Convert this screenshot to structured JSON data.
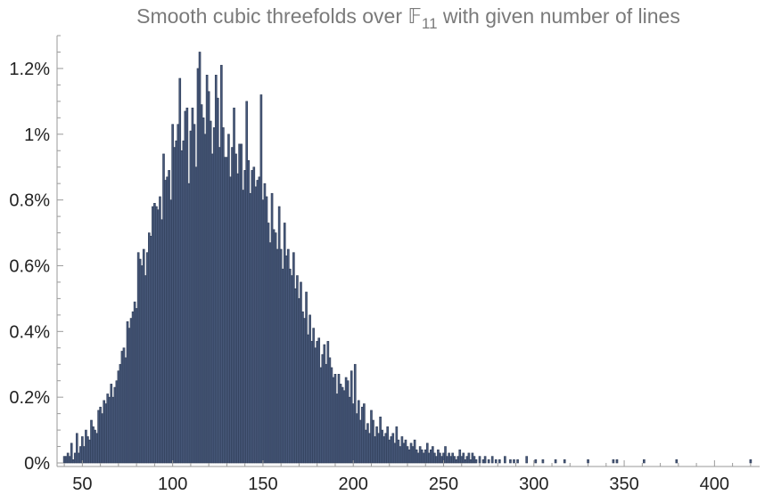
{
  "chart_data": {
    "type": "bar",
    "title_main": "Smooth cubic threefolds over 𝔽",
    "title_subscript": "11",
    "title_rest": " with given number of lines",
    "x_ticks": [
      50,
      100,
      150,
      200,
      250,
      300,
      350,
      400
    ],
    "y_ticks": [
      0,
      0.2,
      0.4,
      0.6,
      0.8,
      1.0,
      1.2
    ],
    "y_tick_labels": [
      "0%",
      "0.2%",
      "0.4%",
      "0.6%",
      "0.8%",
      "1%",
      "1.2%"
    ],
    "xlim": [
      36,
      425
    ],
    "ylim": [
      0,
      1.3
    ],
    "colors": {
      "bar": "#48597a",
      "bar_edge": "#2e3c57",
      "axis": "#9a9a9a",
      "title": "#7a7a7a"
    },
    "bars": [
      [
        40,
        0.02
      ],
      [
        41,
        0.02
      ],
      [
        42,
        0.03
      ],
      [
        43,
        0.02
      ],
      [
        44,
        0.06
      ],
      [
        45,
        0.01
      ],
      [
        46,
        0.03
      ],
      [
        47,
        0.09
      ],
      [
        48,
        0.03
      ],
      [
        49,
        0.05
      ],
      [
        50,
        0.08
      ],
      [
        51,
        0.05
      ],
      [
        52,
        0.1
      ],
      [
        53,
        0.08
      ],
      [
        54,
        0.07
      ],
      [
        55,
        0.13
      ],
      [
        56,
        0.11
      ],
      [
        57,
        0.1
      ],
      [
        58,
        0.09
      ],
      [
        59,
        0.16
      ],
      [
        60,
        0.17
      ],
      [
        61,
        0.15
      ],
      [
        62,
        0.19
      ],
      [
        63,
        0.18
      ],
      [
        64,
        0.21
      ],
      [
        65,
        0.2
      ],
      [
        66,
        0.24
      ],
      [
        67,
        0.2
      ],
      [
        68,
        0.23
      ],
      [
        69,
        0.25
      ],
      [
        70,
        0.28
      ],
      [
        71,
        0.3
      ],
      [
        72,
        0.34
      ],
      [
        73,
        0.35
      ],
      [
        74,
        0.32
      ],
      [
        75,
        0.43
      ],
      [
        76,
        0.41
      ],
      [
        77,
        0.44
      ],
      [
        78,
        0.46
      ],
      [
        79,
        0.49
      ],
      [
        80,
        0.47
      ],
      [
        81,
        0.64
      ],
      [
        82,
        0.62
      ],
      [
        83,
        0.6
      ],
      [
        84,
        0.65
      ],
      [
        85,
        0.57
      ],
      [
        86,
        0.64
      ],
      [
        87,
        0.7
      ],
      [
        88,
        0.69
      ],
      [
        89,
        0.78
      ],
      [
        90,
        0.79
      ],
      [
        91,
        0.78
      ],
      [
        92,
        0.77
      ],
      [
        93,
        0.81
      ],
      [
        94,
        0.74
      ],
      [
        95,
        0.94
      ],
      [
        96,
        0.86
      ],
      [
        97,
        0.87
      ],
      [
        98,
        0.89
      ],
      [
        99,
        0.8
      ],
      [
        100,
        1.03
      ],
      [
        101,
        0.96
      ],
      [
        102,
        0.98
      ],
      [
        103,
        1.03
      ],
      [
        104,
        1.17
      ],
      [
        105,
        0.95
      ],
      [
        106,
        0.98
      ],
      [
        107,
        1.07
      ],
      [
        108,
        1.08
      ],
      [
        109,
        0.85
      ],
      [
        110,
        1.01
      ],
      [
        111,
        1.08
      ],
      [
        112,
        1.03
      ],
      [
        113,
        0.9
      ],
      [
        114,
        1.2
      ],
      [
        115,
        1.25
      ],
      [
        116,
        1.09
      ],
      [
        117,
        1.05
      ],
      [
        118,
        1.0
      ],
      [
        119,
        1.18
      ],
      [
        120,
        1.13
      ],
      [
        121,
        1.04
      ],
      [
        122,
        0.94
      ],
      [
        123,
        1.02
      ],
      [
        124,
        1.18
      ],
      [
        125,
        1.11
      ],
      [
        126,
        0.96
      ],
      [
        127,
        1.21
      ],
      [
        128,
        1.02
      ],
      [
        129,
        0.93
      ],
      [
        130,
        0.93
      ],
      [
        131,
        1.0
      ],
      [
        132,
        0.87
      ],
      [
        133,
        0.96
      ],
      [
        134,
        1.08
      ],
      [
        135,
        0.94
      ],
      [
        136,
        0.88
      ],
      [
        137,
        0.97
      ],
      [
        138,
        0.97
      ],
      [
        139,
        0.83
      ],
      [
        140,
        0.89
      ],
      [
        141,
        1.1
      ],
      [
        142,
        0.92
      ],
      [
        143,
        0.82
      ],
      [
        144,
        0.89
      ],
      [
        145,
        0.9
      ],
      [
        146,
        0.84
      ],
      [
        147,
        0.86
      ],
      [
        148,
        0.87
      ],
      [
        149,
        1.12
      ],
      [
        150,
        0.8
      ],
      [
        151,
        0.85
      ],
      [
        152,
        0.81
      ],
      [
        153,
        0.73
      ],
      [
        154,
        0.67
      ],
      [
        155,
        0.82
      ],
      [
        156,
        0.71
      ],
      [
        157,
        0.7
      ],
      [
        158,
        0.65
      ],
      [
        159,
        0.78
      ],
      [
        160,
        0.65
      ],
      [
        161,
        0.59
      ],
      [
        162,
        0.73
      ],
      [
        163,
        0.63
      ],
      [
        164,
        0.65
      ],
      [
        165,
        0.59
      ],
      [
        166,
        0.57
      ],
      [
        167,
        0.64
      ],
      [
        168,
        0.53
      ],
      [
        169,
        0.57
      ],
      [
        170,
        0.5
      ],
      [
        171,
        0.55
      ],
      [
        172,
        0.46
      ],
      [
        173,
        0.44
      ],
      [
        174,
        0.52
      ],
      [
        175,
        0.39
      ],
      [
        176,
        0.45
      ],
      [
        177,
        0.37
      ],
      [
        178,
        0.41
      ],
      [
        179,
        0.35
      ],
      [
        180,
        0.37
      ],
      [
        181,
        0.38
      ],
      [
        182,
        0.29
      ],
      [
        183,
        0.33
      ],
      [
        184,
        0.36
      ],
      [
        185,
        0.3
      ],
      [
        186,
        0.37
      ],
      [
        187,
        0.32
      ],
      [
        188,
        0.29
      ],
      [
        189,
        0.26
      ],
      [
        190,
        0.27
      ],
      [
        191,
        0.21
      ],
      [
        192,
        0.27
      ],
      [
        193,
        0.24
      ],
      [
        194,
        0.23
      ],
      [
        195,
        0.22
      ],
      [
        196,
        0.26
      ],
      [
        197,
        0.25
      ],
      [
        198,
        0.2
      ],
      [
        199,
        0.28
      ],
      [
        200,
        0.18
      ],
      [
        201,
        0.3
      ],
      [
        202,
        0.15
      ],
      [
        203,
        0.19
      ],
      [
        204,
        0.13
      ],
      [
        205,
        0.17
      ],
      [
        206,
        0.18
      ],
      [
        207,
        0.1
      ],
      [
        208,
        0.12
      ],
      [
        209,
        0.09
      ],
      [
        210,
        0.16
      ],
      [
        211,
        0.13
      ],
      [
        212,
        0.08
      ],
      [
        213,
        0.11
      ],
      [
        214,
        0.09
      ],
      [
        215,
        0.14
      ],
      [
        216,
        0.1
      ],
      [
        217,
        0.08
      ],
      [
        218,
        0.09
      ],
      [
        219,
        0.11
      ],
      [
        220,
        0.07
      ],
      [
        221,
        0.08
      ],
      [
        222,
        0.09
      ],
      [
        223,
        0.06
      ],
      [
        224,
        0.11
      ],
      [
        225,
        0.07
      ],
      [
        226,
        0.05
      ],
      [
        227,
        0.08
      ],
      [
        228,
        0.06
      ],
      [
        229,
        0.07
      ],
      [
        230,
        0.05
      ],
      [
        231,
        0.04
      ],
      [
        232,
        0.06
      ],
      [
        233,
        0.05
      ],
      [
        234,
        0.07
      ],
      [
        235,
        0.04
      ],
      [
        236,
        0.03
      ],
      [
        237,
        0.05
      ],
      [
        238,
        0.04
      ],
      [
        239,
        0.03
      ],
      [
        240,
        0.04
      ],
      [
        241,
        0.06
      ],
      [
        242,
        0.03
      ],
      [
        243,
        0.04
      ],
      [
        244,
        0.05
      ],
      [
        245,
        0.03
      ],
      [
        246,
        0.02
      ],
      [
        247,
        0.04
      ],
      [
        248,
        0.03
      ],
      [
        249,
        0.02
      ],
      [
        250,
        0.03
      ],
      [
        251,
        0.05
      ],
      [
        252,
        0.02
      ],
      [
        253,
        0.03
      ],
      [
        254,
        0.02
      ],
      [
        255,
        0.03
      ],
      [
        256,
        0.02
      ],
      [
        257,
        0.01
      ],
      [
        258,
        0.02
      ],
      [
        259,
        0.04
      ],
      [
        260,
        0.02
      ],
      [
        261,
        0.03
      ],
      [
        262,
        0.01
      ],
      [
        263,
        0.02
      ],
      [
        264,
        0.03
      ],
      [
        265,
        0.01
      ],
      [
        266,
        0.03
      ],
      [
        267,
        0.02
      ],
      [
        268,
        0.01
      ],
      [
        270,
        0.02
      ],
      [
        272,
        0.01
      ],
      [
        273,
        0.02
      ],
      [
        275,
        0.01
      ],
      [
        277,
        0.02
      ],
      [
        279,
        0.01
      ],
      [
        281,
        0.01
      ],
      [
        284,
        0.02
      ],
      [
        287,
        0.01
      ],
      [
        289,
        0.01
      ],
      [
        291,
        0.01
      ],
      [
        296,
        0.02
      ],
      [
        301,
        0.01
      ],
      [
        305,
        0.01
      ],
      [
        312,
        0.01
      ],
      [
        317,
        0.01
      ],
      [
        330,
        0.01
      ],
      [
        344,
        0.01
      ],
      [
        346,
        0.01
      ],
      [
        361,
        0.01
      ],
      [
        379,
        0.01
      ],
      [
        420,
        0.01
      ]
    ]
  }
}
